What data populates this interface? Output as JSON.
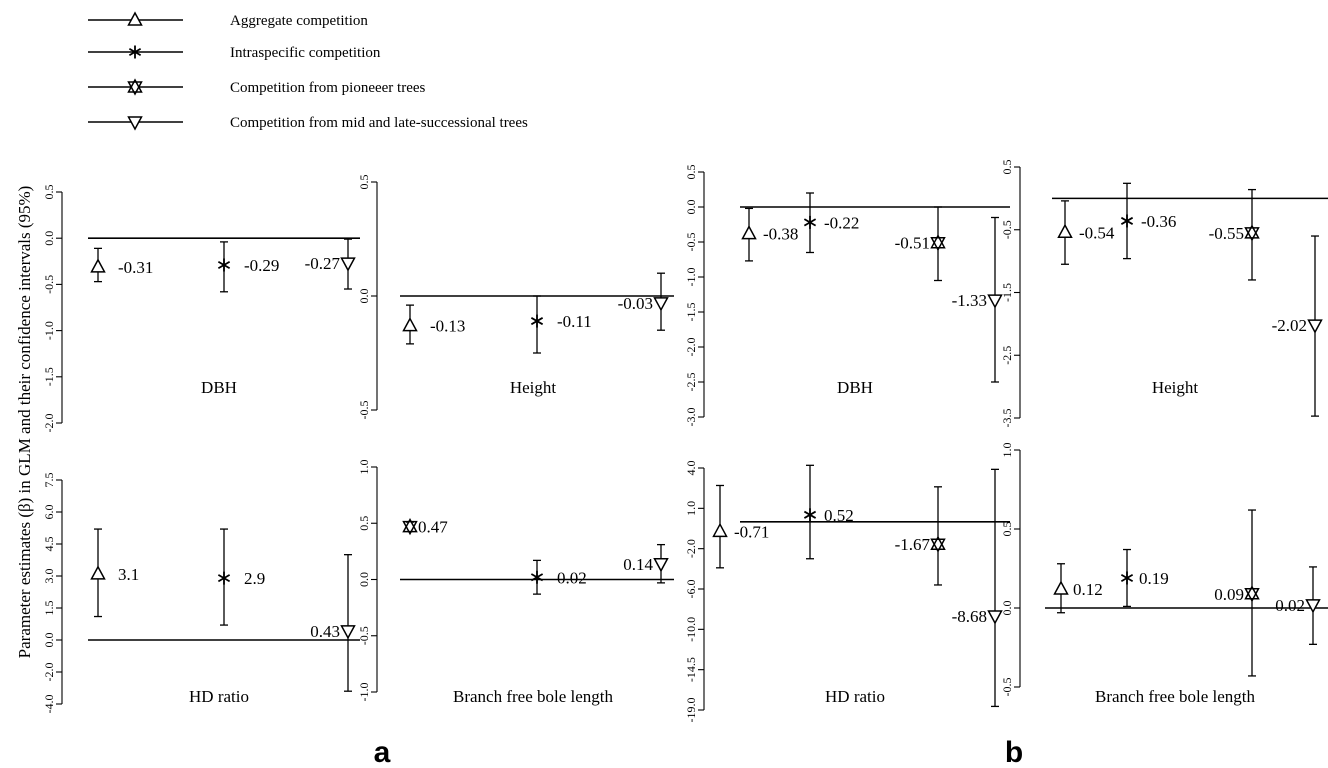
{
  "y_axis_label": "Parameter estimates (β) in GLM and their confidence intervals (95%)",
  "legend": [
    {
      "label": "Aggregate competition",
      "marker": "triangle-up"
    },
    {
      "label": "Intraspecific competition",
      "marker": "asterisk"
    },
    {
      "label": "Competition from pioneeer trees",
      "marker": "hourglass"
    },
    {
      "label": "Competition from mid and late-successional trees",
      "marker": "triangle-down"
    }
  ],
  "panel_labels": {
    "a": "a",
    "b": "b"
  },
  "chart_data": [
    {
      "id": "a-dbh",
      "type": "scatter",
      "title": "DBH",
      "ylim": [
        -2.0,
        0.5
      ],
      "ticks": [
        0.5,
        0.0,
        -0.5,
        -1.0,
        -1.5,
        -2.0
      ],
      "tick_labels": [
        "0.5",
        "0.0",
        "-0.5",
        "-1.0",
        "-1.5",
        "-2.0"
      ],
      "points": [
        {
          "slot": 0,
          "marker": "triangle-up",
          "value": -0.31,
          "ci": [
            -0.47,
            -0.11
          ],
          "label": "-0.31"
        },
        {
          "slot": 1,
          "marker": "asterisk",
          "value": -0.29,
          "ci": [
            -0.58,
            -0.04
          ],
          "label": "-0.29"
        },
        {
          "slot": 3,
          "marker": "triangle-down",
          "value": -0.27,
          "ci": [
            -0.55,
            -0.01
          ],
          "label": "-0.27"
        }
      ]
    },
    {
      "id": "a-height",
      "type": "scatter",
      "title": "Height",
      "ylim": [
        -0.5,
        0.5
      ],
      "ticks": [
        0.5,
        0.0,
        -0.5
      ],
      "tick_labels": [
        "0.5",
        "0.0",
        "-0.5"
      ],
      "points": [
        {
          "slot": 0,
          "marker": "triangle-up",
          "value": -0.13,
          "ci": [
            -0.21,
            -0.04
          ],
          "label": "-0.13"
        },
        {
          "slot": 1,
          "marker": "asterisk",
          "value": -0.11,
          "ci": [
            -0.25,
            0.0
          ],
          "label": "-0.11"
        },
        {
          "slot": 3,
          "marker": "triangle-down",
          "value": -0.03,
          "ci": [
            -0.15,
            0.1
          ],
          "label": "-0.03"
        }
      ]
    },
    {
      "id": "b-dbh",
      "type": "scatter",
      "title": "DBH",
      "ylim": [
        -3.0,
        0.5
      ],
      "ticks": [
        0.5,
        0.0,
        -0.5,
        -1.0,
        -1.5,
        -2.0,
        -2.5,
        -3.0
      ],
      "tick_labels": [
        "0.5",
        "0.0",
        "-0.5",
        "-1.0",
        "-1.5",
        "-2.0",
        "-2.5",
        "-3.0"
      ],
      "points": [
        {
          "slot": 0,
          "marker": "triangle-up",
          "value": -0.38,
          "ci": [
            -0.77,
            -0.02
          ],
          "label": "-0.38"
        },
        {
          "slot": 1,
          "marker": "asterisk",
          "value": -0.22,
          "ci": [
            -0.65,
            0.2
          ],
          "label": "-0.22"
        },
        {
          "slot": 2,
          "marker": "hourglass",
          "value": -0.51,
          "ci": [
            -1.05,
            0.0
          ],
          "label": "-0.51"
        },
        {
          "slot": 3,
          "marker": "triangle-down",
          "value": -1.33,
          "ci": [
            -2.5,
            -0.15
          ],
          "label": "-1.33"
        }
      ]
    },
    {
      "id": "b-height",
      "type": "scatter",
      "title": "Height",
      "ylim": [
        -3.5,
        0.5
      ],
      "ticks": [
        0.5,
        -0.5,
        -1.5,
        -2.5,
        -3.5
      ],
      "tick_labels": [
        "0.5",
        "-0.5",
        "-1.5",
        "-2.5",
        "-3.5"
      ],
      "points": [
        {
          "slot": 0,
          "marker": "triangle-up",
          "value": -0.54,
          "ci": [
            -1.05,
            -0.04
          ],
          "label": "-0.54"
        },
        {
          "slot": 1,
          "marker": "asterisk",
          "value": -0.36,
          "ci": [
            -0.96,
            0.24
          ],
          "label": "-0.36"
        },
        {
          "slot": 2,
          "marker": "hourglass",
          "value": -0.55,
          "ci": [
            -1.3,
            0.14
          ],
          "label": "-0.55"
        },
        {
          "slot": 3,
          "marker": "triangle-down",
          "value": -2.02,
          "ci": [
            -3.47,
            -0.6
          ],
          "label": "-2.02"
        }
      ]
    },
    {
      "id": "a-hd",
      "type": "scatter",
      "title": "HD ratio",
      "ylim": [
        -4.0,
        7.5
      ],
      "ticks": [
        7.5,
        6.0,
        4.5,
        3.0,
        1.5,
        0.0,
        -2.0,
        -4.0
      ],
      "tick_labels": [
        "7.5",
        "6.0",
        "4.5",
        "3.0",
        "1.5",
        "0.0",
        "-2.0",
        "-4.0"
      ],
      "points": [
        {
          "slot": 0,
          "marker": "triangle-up",
          "value": 3.1,
          "ci": [
            1.1,
            5.2
          ],
          "label": "3.1"
        },
        {
          "slot": 1,
          "marker": "asterisk",
          "value": 2.9,
          "ci": [
            0.7,
            5.2
          ],
          "label": "2.9"
        },
        {
          "slot": 3,
          "marker": "triangle-down",
          "value": 0.43,
          "ci": [
            -3.2,
            4.0
          ],
          "label": "0.43"
        }
      ]
    },
    {
      "id": "a-bfbl",
      "type": "scatter",
      "title": "Branch free bole length",
      "ylim": [
        -1.0,
        1.0
      ],
      "ticks": [
        1.0,
        0.5,
        0.0,
        -0.5,
        -1.0
      ],
      "tick_labels": [
        "1.0",
        "0.5",
        "0.0",
        "-0.5",
        "-1.0"
      ],
      "points": [
        {
          "slot": 0,
          "marker": "hourglass",
          "value": 0.47,
          "ci": [
            0.43,
            0.51
          ],
          "label": "0.47"
        },
        {
          "slot": 1,
          "marker": "asterisk",
          "value": 0.02,
          "ci": [
            -0.13,
            0.17
          ],
          "label": "0.02"
        },
        {
          "slot": 3,
          "marker": "triangle-down",
          "value": 0.14,
          "ci": [
            -0.03,
            0.31
          ],
          "label": "0.14"
        }
      ]
    },
    {
      "id": "b-hd",
      "type": "scatter",
      "title": "HD ratio",
      "ylim": [
        -19.0,
        4.0
      ],
      "ticks": [
        4.0,
        1.0,
        -2.0,
        -6.0,
        -10.0,
        -14.5,
        -19.0
      ],
      "tick_labels": [
        "4.0",
        "1.0",
        "-2.0",
        "-6.0",
        "-10.0",
        "-14.5",
        "-19.0"
      ],
      "points": [
        {
          "slot": 0,
          "marker": "triangle-up",
          "value": -0.71,
          "ci": [
            -3.9,
            2.7
          ],
          "label": "-0.71"
        },
        {
          "slot": 1,
          "marker": "asterisk",
          "value": 0.52,
          "ci": [
            -3.0,
            4.2
          ],
          "label": "0.52"
        },
        {
          "slot": 2,
          "marker": "hourglass",
          "value": -1.67,
          "ci": [
            -5.6,
            2.6
          ],
          "label": "-1.67"
        },
        {
          "slot": 3,
          "marker": "triangle-down",
          "value": -8.68,
          "ci": [
            -18.6,
            3.9
          ],
          "label": "-8.68"
        }
      ]
    },
    {
      "id": "b-bfbl",
      "type": "scatter",
      "title": "Branch free bole length",
      "ylim": [
        -0.5,
        1.0
      ],
      "ticks": [
        1.0,
        0.5,
        0.0,
        -0.5
      ],
      "tick_labels": [
        "1.0",
        "0.5",
        "0.0",
        "-0.5"
      ],
      "points": [
        {
          "slot": 0,
          "marker": "triangle-up",
          "value": 0.12,
          "ci": [
            -0.03,
            0.28
          ],
          "label": "0.12"
        },
        {
          "slot": 1,
          "marker": "asterisk",
          "value": 0.19,
          "ci": [
            0.01,
            0.37
          ],
          "label": "0.19"
        },
        {
          "slot": 2,
          "marker": "hourglass",
          "value": 0.09,
          "ci": [
            -0.43,
            0.62
          ],
          "label": "0.09"
        },
        {
          "slot": 3,
          "marker": "triangle-down",
          "value": 0.02,
          "ci": [
            -0.23,
            0.26
          ],
          "label": "0.02"
        }
      ]
    }
  ]
}
